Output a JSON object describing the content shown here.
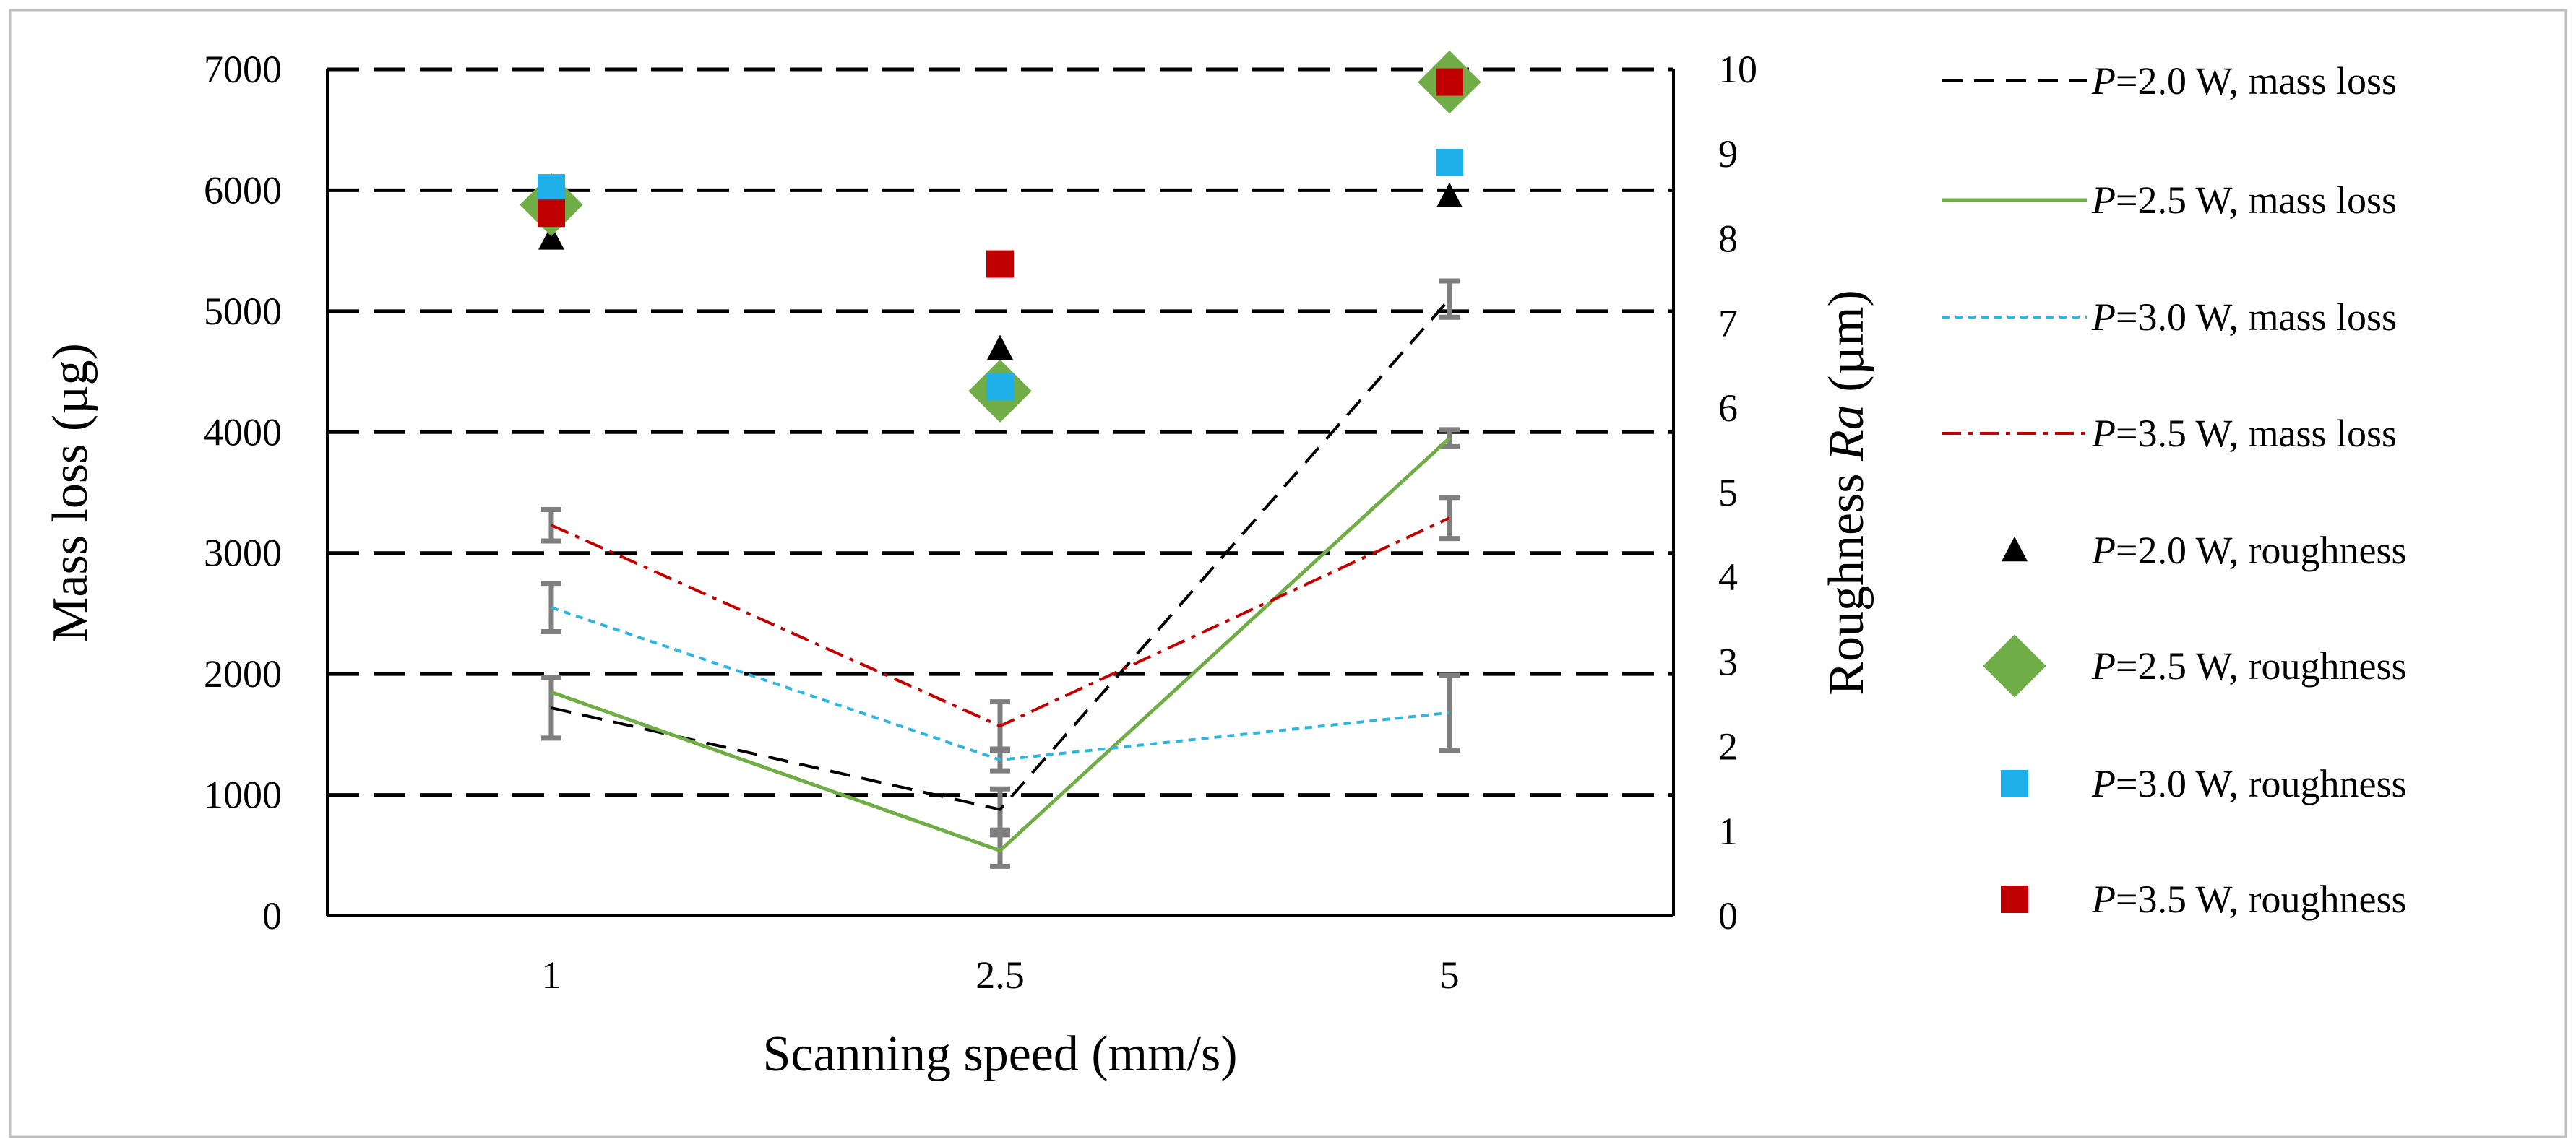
{
  "chart_data": {
    "type": "line",
    "title": "",
    "xlabel": "Scanning speed (mm/s)",
    "ylabel": "Mass loss (µg)",
    "y2label_prefix": "Roughness ",
    "y2label_italic": "Ra",
    "y2label_suffix": " (µm)",
    "categories": [
      "1",
      "2.5",
      "5"
    ],
    "ylim": [
      0,
      7000
    ],
    "yticks": [
      "0",
      "1000",
      "2000",
      "3000",
      "4000",
      "5000",
      "6000",
      "7000"
    ],
    "y2lim": [
      0,
      10
    ],
    "y2ticks": [
      "0",
      "1",
      "2",
      "3",
      "4",
      "5",
      "6",
      "7",
      "8",
      "9",
      "10"
    ],
    "grid": true,
    "legend_position": "right",
    "series": [
      {
        "name": "P=2.0 W, mass loss",
        "legend_prefix": "P",
        "legend_rest": "=2.0 W, mass loss",
        "axis": "left",
        "kind": "line",
        "color": "#000000",
        "dash": "dashed",
        "values": [
          1720,
          880,
          5100
        ],
        "errors": [
          250,
          170,
          150
        ]
      },
      {
        "name": "P=2.5 W, mass loss",
        "legend_prefix": "P",
        "legend_rest": "=2.5 W, mass loss",
        "axis": "left",
        "kind": "line",
        "color": "#70ad47",
        "dash": "solid",
        "values": [
          1850,
          540,
          3950
        ],
        "errors": [
          0,
          130,
          70
        ]
      },
      {
        "name": "P=3.0 W, mass loss",
        "legend_prefix": "P",
        "legend_rest": "=3.0 W, mass loss",
        "axis": "left",
        "kind": "line",
        "color": "#2eb5e0",
        "dash": "dotted",
        "values": [
          2550,
          1290,
          1680
        ],
        "errors": [
          200,
          90,
          310
        ]
      },
      {
        "name": "P=3.5 W, mass loss",
        "legend_prefix": "P",
        "legend_rest": "=3.5 W, mass loss",
        "axis": "left",
        "kind": "line",
        "color": "#c00000",
        "dash": "dashdot",
        "values": [
          3230,
          1570,
          3290
        ],
        "errors": [
          130,
          200,
          170
        ]
      },
      {
        "name": "P=2.0 W, roughness",
        "legend_prefix": "P",
        "legend_rest": "=2.0 W, roughness",
        "axis": "right",
        "kind": "marker",
        "marker": "triangle",
        "color": "#000000",
        "values": [
          8.0,
          6.7,
          8.5
        ]
      },
      {
        "name": "P=2.5 W, roughness",
        "legend_prefix": "P",
        "legend_rest": "=2.5 W, roughness",
        "axis": "right",
        "kind": "marker",
        "marker": "diamond",
        "color": "#70ad47",
        "values": [
          8.4,
          6.2,
          9.85
        ]
      },
      {
        "name": "P=3.0 W, roughness",
        "legend_prefix": "P",
        "legend_rest": "=3.0 W, roughness",
        "axis": "right",
        "kind": "marker",
        "marker": "square",
        "color": "#1fb0ea",
        "values": [
          8.6,
          6.25,
          8.9
        ]
      },
      {
        "name": "P=3.5 W, roughness",
        "legend_prefix": "P",
        "legend_rest": "=3.5 W, roughness",
        "axis": "right",
        "kind": "marker",
        "marker": "square",
        "color": "#c00000",
        "values": [
          8.3,
          7.7,
          9.85
        ]
      }
    ]
  }
}
